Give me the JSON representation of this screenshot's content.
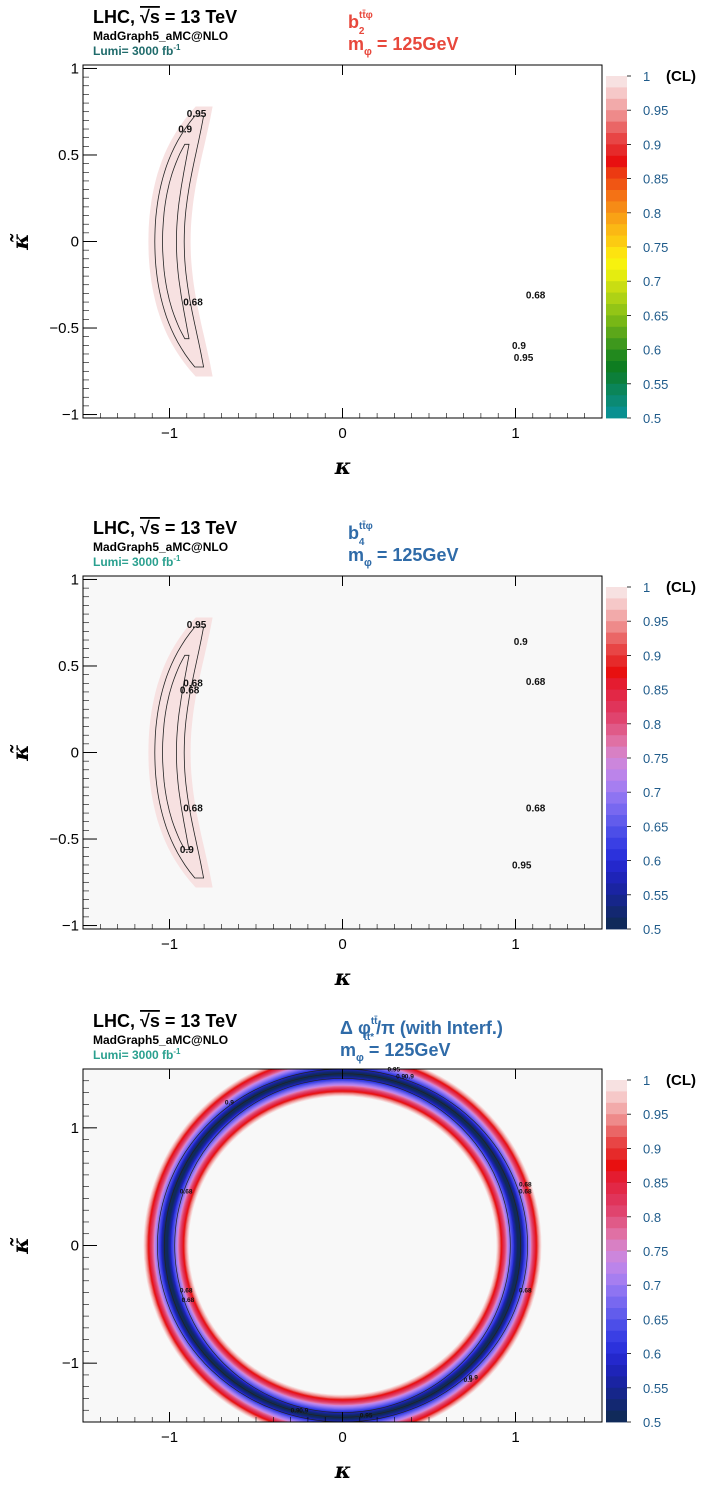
{
  "chart_data": [
    {
      "type": "heatmap",
      "header": {
        "line1_prefix": "LHC, ",
        "line1_sqrt": "√s",
        "line1_suffix": " = 13 TeV",
        "generator": "MadGraph5_aMC@NLO",
        "lumi": "Lumi= 3000 fb",
        "lumi_sup": "-1"
      },
      "title": {
        "observable_main": "b",
        "observable_sub": "2",
        "observable_sup": "tt̄φ",
        "mass": "m",
        "mass_sub": "φ",
        "mass_value": " = 125GeV"
      },
      "title_color": "#e8483c",
      "lumi_color": "#1f6b6b",
      "xlabel": "κ",
      "ylabel": "κ̃",
      "xlim": [
        -1.5,
        1.5
      ],
      "ylim": [
        -1.02,
        1.02
      ],
      "xticks": [
        -1,
        0,
        1
      ],
      "xtick_labels": [
        "−1",
        "0",
        "1"
      ],
      "yticks": [
        -1,
        -0.5,
        0,
        0.5,
        1
      ],
      "ytick_labels": [
        "−1",
        "−0.5",
        "0",
        "0.5",
        "1"
      ],
      "colorbar": {
        "label": "(CL)",
        "range": [
          0.5,
          1
        ],
        "ticks": [
          0.5,
          0.55,
          0.6,
          0.65,
          0.7,
          0.75,
          0.8,
          0.85,
          0.9,
          0.95,
          1
        ],
        "tick_labels": [
          "0.5",
          "0.55",
          "0.6",
          "0.65",
          "0.7",
          "0.75",
          "0.8",
          "0.85",
          "0.9",
          "0.95",
          "1"
        ],
        "palette": "rainbow",
        "colors": [
          "#f7e1e1",
          "#f6c8c8",
          "#f2aaaa",
          "#ee8a8a",
          "#ea6666",
          "#e84545",
          "#e62a2a",
          "#e81010",
          "#ec3a12",
          "#f05614",
          "#f47215",
          "#f68b16",
          "#f9a215",
          "#fbb814",
          "#fccb12",
          "#fde310",
          "#f7f20e",
          "#e4ec10",
          "#c9dd12",
          "#aed215",
          "#93c516",
          "#78b716",
          "#5ca71a",
          "#3e981d",
          "#22891e",
          "#0e7d21",
          "#0c7f3a",
          "#0b8559",
          "#0b8a74",
          "#0a9090"
        ]
      },
      "contour_labels": [
        {
          "text": "0.95",
          "x": -0.9,
          "y": 0.72
        },
        {
          "text": "0.9",
          "x": -0.95,
          "y": 0.63
        },
        {
          "text": "0.68",
          "x": -0.92,
          "y": -0.37
        },
        {
          "text": "0.68",
          "x": 1.06,
          "y": -0.33
        },
        {
          "text": "0.9",
          "x": 0.98,
          "y": -0.62
        },
        {
          "text": "0.95",
          "x": 0.99,
          "y": -0.69
        }
      ]
    },
    {
      "type": "heatmap",
      "header": {
        "line1_prefix": "LHC, ",
        "line1_sqrt": "√s",
        "line1_suffix": " = 13 TeV",
        "generator": "MadGraph5_aMC@NLO",
        "lumi": "Lumi= 3000 fb",
        "lumi_sup": "-1"
      },
      "title": {
        "observable_main": "b",
        "observable_sub": "4",
        "observable_sup": "tt̄φ",
        "mass": "m",
        "mass_sub": "φ",
        "mass_value": " = 125GeV"
      },
      "title_color": "#2f6ba8",
      "lumi_color": "#2aa08f",
      "xlabel": "κ",
      "ylabel": "κ̃",
      "xlim": [
        -1.5,
        1.5
      ],
      "ylim": [
        -1.02,
        1.02
      ],
      "xticks": [
        -1,
        0,
        1
      ],
      "xtick_labels": [
        "−1",
        "0",
        "1"
      ],
      "yticks": [
        -1,
        -0.5,
        0,
        0.5,
        1
      ],
      "ytick_labels": [
        "−1",
        "−0.5",
        "0",
        "0.5",
        "1"
      ],
      "colorbar": {
        "label": "(CL)",
        "range": [
          0.5,
          1
        ],
        "ticks": [
          0.5,
          0.55,
          0.6,
          0.65,
          0.7,
          0.75,
          0.8,
          0.85,
          0.9,
          0.95,
          1
        ],
        "tick_labels": [
          "0.5",
          "0.55",
          "0.6",
          "0.65",
          "0.7",
          "0.75",
          "0.8",
          "0.85",
          "0.9",
          "0.95",
          "1"
        ],
        "palette": "red-blue",
        "colors": [
          "#f7e1e1",
          "#f6c8c8",
          "#f2aaaa",
          "#ee8a8a",
          "#ea6666",
          "#e84545",
          "#e62a2a",
          "#e81010",
          "#e41c30",
          "#e22846",
          "#e0345a",
          "#e0446e",
          "#e05a88",
          "#e070a4",
          "#d880c4",
          "#cc86dc",
          "#bb84ea",
          "#a67ef0",
          "#8e74f2",
          "#7868f0",
          "#625cec",
          "#4c4ee8",
          "#3a3fe4",
          "#2c32dc",
          "#2428cc",
          "#1e24b8",
          "#1a24a2",
          "#16268a",
          "#132871",
          "#102a5a"
        ]
      },
      "contour_labels": [
        {
          "text": "0.95",
          "x": -0.9,
          "y": 0.72
        },
        {
          "text": "0.68",
          "x": -0.92,
          "y": 0.38
        },
        {
          "text": "0.68",
          "x": -0.94,
          "y": 0.34
        },
        {
          "text": "0.68",
          "x": -0.92,
          "y": -0.34
        },
        {
          "text": "0.9",
          "x": -0.94,
          "y": -0.58
        },
        {
          "text": "0.9",
          "x": 0.99,
          "y": 0.62
        },
        {
          "text": "0.68",
          "x": 1.06,
          "y": 0.39
        },
        {
          "text": "0.68",
          "x": 1.06,
          "y": -0.34
        },
        {
          "text": "0.95",
          "x": 0.98,
          "y": -0.67
        }
      ]
    },
    {
      "type": "heatmap",
      "header": {
        "line1_prefix": "LHC, ",
        "line1_sqrt": "√s",
        "line1_suffix": " = 13 TeV",
        "generator": "MadGraph5_aMC@NLO",
        "lumi": "Lumi= 3000 fb",
        "lumi_sup": "-1"
      },
      "title": {
        "observable_main": "Δ φ",
        "observable_sub": "tt̄*",
        "observable_sup": "tt̄",
        "observable_tail": "/π (with Interf.)",
        "mass": "m",
        "mass_sub": "φ",
        "mass_value": " = 125GeV"
      },
      "title_color": "#2f6ba8",
      "lumi_color": "#2aa08f",
      "xlabel": "κ",
      "ylabel": "κ̃",
      "xlim": [
        -1.5,
        1.5
      ],
      "ylim": [
        -1.5,
        1.5
      ],
      "xticks": [
        -1,
        0,
        1
      ],
      "xtick_labels": [
        "−1",
        "0",
        "1"
      ],
      "yticks": [
        -1,
        0,
        1
      ],
      "ytick_labels": [
        "−1",
        "0",
        "1"
      ],
      "colorbar": {
        "label": "(CL)",
        "range": [
          0.5,
          1
        ],
        "ticks": [
          0.5,
          0.55,
          0.6,
          0.65,
          0.7,
          0.75,
          0.8,
          0.85,
          0.9,
          0.95,
          1
        ],
        "tick_labels": [
          "0.5",
          "0.55",
          "0.6",
          "0.65",
          "0.7",
          "0.75",
          "0.8",
          "0.85",
          "0.9",
          "0.95",
          "1"
        ],
        "palette": "red-blue",
        "colors": [
          "#f7e1e1",
          "#f6c8c8",
          "#f2aaaa",
          "#ee8a8a",
          "#ea6666",
          "#e84545",
          "#e62a2a",
          "#e81010",
          "#e41c30",
          "#e22846",
          "#e0345a",
          "#e0446e",
          "#e05a88",
          "#e070a4",
          "#d880c4",
          "#cc86dc",
          "#bb84ea",
          "#a67ef0",
          "#8e74f2",
          "#7868f0",
          "#625cec",
          "#4c4ee8",
          "#3a3fe4",
          "#2c32dc",
          "#2428cc",
          "#1e24b8",
          "#1a24a2",
          "#16268a",
          "#132871",
          "#102a5a"
        ]
      },
      "contour_labels": [
        {
          "text": "0.95",
          "x": 0.26,
          "y": 1.48
        },
        {
          "text": "0.9",
          "x": 0.31,
          "y": 1.42
        },
        {
          "text": "0.9",
          "x": 0.36,
          "y": 1.42
        },
        {
          "text": "0.9",
          "x": -0.68,
          "y": 1.2
        },
        {
          "text": "0.68",
          "x": -0.94,
          "y": 0.44
        },
        {
          "text": "0.68",
          "x": 1.02,
          "y": 0.5
        },
        {
          "text": "0.68",
          "x": 1.02,
          "y": 0.44
        },
        {
          "text": "0.68",
          "x": -0.94,
          "y": -0.4
        },
        {
          "text": "0.68",
          "x": -0.93,
          "y": -0.48
        },
        {
          "text": "0.68",
          "x": 1.02,
          "y": -0.4
        },
        {
          "text": "0.9",
          "x": 0.73,
          "y": -1.14
        },
        {
          "text": "0.9",
          "x": 0.7,
          "y": -1.16
        },
        {
          "text": "0.9",
          "x": -0.3,
          "y": -1.42
        },
        {
          "text": "0.9",
          "x": -0.25,
          "y": -1.42
        },
        {
          "text": "0.95",
          "x": 0.1,
          "y": -1.46
        }
      ]
    }
  ]
}
